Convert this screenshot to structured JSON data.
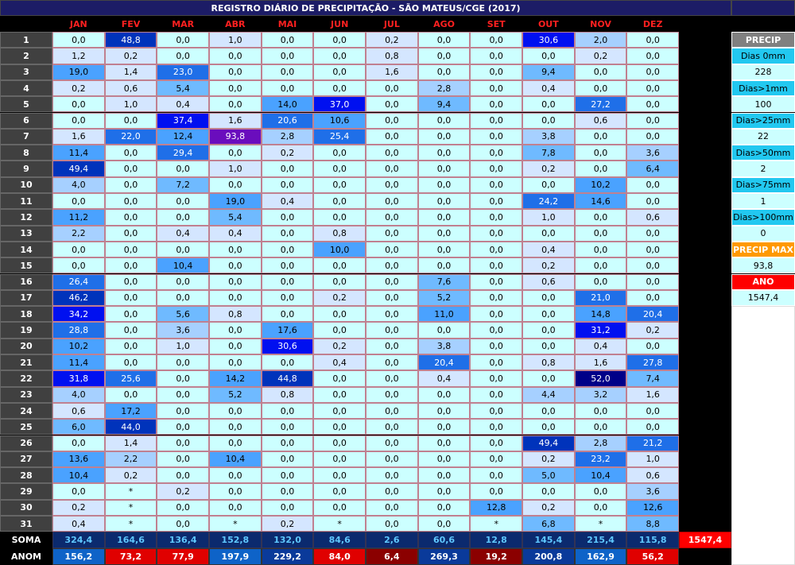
{
  "header": {
    "title": "REGISTRO DIÁRIO DE PRECIPITAÇÃO - SÃO MATEUS/CGE (2017)",
    "months": [
      "JAN",
      "FEV",
      "MAR",
      "ABR",
      "MAI",
      "JUN",
      "JUL",
      "AGO",
      "SET",
      "OUT",
      "NOV",
      "DEZ"
    ]
  },
  "table": {
    "rows": [
      {
        "day": "1",
        "values": [
          "0,0",
          "48,8",
          "0,0",
          "1,0",
          "0,0",
          "0,0",
          "0,2",
          "0,0",
          "0,0",
          "30,6",
          "2,0",
          "0,0"
        ]
      },
      {
        "day": "2",
        "values": [
          "1,2",
          "0,2",
          "0,0",
          "0,0",
          "0,0",
          "0,0",
          "0,8",
          "0,0",
          "0,0",
          "0,0",
          "0,2",
          "0,0"
        ]
      },
      {
        "day": "3",
        "values": [
          "19,0",
          "1,4",
          "23,0",
          "0,0",
          "0,0",
          "0,0",
          "1,6",
          "0,0",
          "0,0",
          "9,4",
          "0,0",
          "0,0"
        ]
      },
      {
        "day": "4",
        "values": [
          "0,2",
          "0,6",
          "5,4",
          "0,0",
          "0,0",
          "0,0",
          "0,0",
          "2,8",
          "0,0",
          "0,4",
          "0,0",
          "0,0"
        ]
      },
      {
        "day": "5",
        "values": [
          "0,0",
          "1,0",
          "0,4",
          "0,0",
          "14,0",
          "37,0",
          "0,0",
          "9,4",
          "0,0",
          "0,0",
          "27,2",
          "0,0"
        ]
      },
      {
        "day": "6",
        "values": [
          "0,0",
          "0,0",
          "37,4",
          "1,6",
          "20,6",
          "10,6",
          "0,0",
          "0,0",
          "0,0",
          "0,0",
          "0,6",
          "0,0"
        ]
      },
      {
        "day": "7",
        "values": [
          "1,6",
          "22,0",
          "12,4",
          "93,8",
          "2,8",
          "25,4",
          "0,0",
          "0,0",
          "0,0",
          "3,8",
          "0,0",
          "0,0"
        ]
      },
      {
        "day": "8",
        "values": [
          "11,4",
          "0,0",
          "29,4",
          "0,0",
          "0,2",
          "0,0",
          "0,0",
          "0,0",
          "0,0",
          "7,8",
          "0,0",
          "3,6"
        ]
      },
      {
        "day": "9",
        "values": [
          "49,4",
          "0,0",
          "0,0",
          "1,0",
          "0,0",
          "0,0",
          "0,0",
          "0,0",
          "0,0",
          "0,2",
          "0,0",
          "6,4"
        ]
      },
      {
        "day": "10",
        "values": [
          "4,0",
          "0,0",
          "7,2",
          "0,0",
          "0,0",
          "0,0",
          "0,0",
          "0,0",
          "0,0",
          "0,0",
          "10,2",
          "0,0"
        ]
      },
      {
        "day": "11",
        "values": [
          "0,0",
          "0,0",
          "0,0",
          "19,0",
          "0,4",
          "0,0",
          "0,0",
          "0,0",
          "0,0",
          "24,2",
          "14,6",
          "0,0"
        ]
      },
      {
        "day": "12",
        "values": [
          "11,2",
          "0,0",
          "0,0",
          "5,4",
          "0,0",
          "0,0",
          "0,0",
          "0,0",
          "0,0",
          "1,0",
          "0,0",
          "0,6"
        ]
      },
      {
        "day": "13",
        "values": [
          "2,2",
          "0,0",
          "0,4",
          "0,4",
          "0,0",
          "0,8",
          "0,0",
          "0,0",
          "0,0",
          "0,0",
          "0,0",
          "0,0"
        ]
      },
      {
        "day": "14",
        "values": [
          "0,0",
          "0,0",
          "0,0",
          "0,0",
          "0,0",
          "10,0",
          "0,0",
          "0,0",
          "0,0",
          "0,4",
          "0,0",
          "0,0"
        ]
      },
      {
        "day": "15",
        "values": [
          "0,0",
          "0,0",
          "10,4",
          "0,0",
          "0,0",
          "0,0",
          "0,0",
          "0,0",
          "0,0",
          "0,2",
          "0,0",
          "0,0"
        ]
      },
      {
        "day": "16",
        "values": [
          "26,4",
          "0,0",
          "0,0",
          "0,0",
          "0,0",
          "0,0",
          "0,0",
          "7,6",
          "0,0",
          "0,6",
          "0,0",
          "0,0"
        ]
      },
      {
        "day": "17",
        "values": [
          "46,2",
          "0,0",
          "0,0",
          "0,0",
          "0,0",
          "0,2",
          "0,0",
          "5,2",
          "0,0",
          "0,0",
          "21,0",
          "0,0"
        ]
      },
      {
        "day": "18",
        "values": [
          "34,2",
          "0,0",
          "5,6",
          "0,8",
          "0,0",
          "0,0",
          "0,0",
          "11,0",
          "0,0",
          "0,0",
          "14,8",
          "20,4"
        ]
      },
      {
        "day": "19",
        "values": [
          "28,8",
          "0,0",
          "3,6",
          "0,0",
          "17,6",
          "0,0",
          "0,0",
          "0,0",
          "0,0",
          "0,0",
          "31,2",
          "0,2"
        ]
      },
      {
        "day": "20",
        "values": [
          "10,2",
          "0,0",
          "1,0",
          "0,0",
          "30,6",
          "0,2",
          "0,0",
          "3,8",
          "0,0",
          "0,0",
          "0,4",
          "0,0"
        ]
      },
      {
        "day": "21",
        "values": [
          "11,4",
          "0,0",
          "0,0",
          "0,0",
          "0,0",
          "0,4",
          "0,0",
          "20,4",
          "0,0",
          "0,8",
          "1,6",
          "27,8"
        ]
      },
      {
        "day": "22",
        "values": [
          "31,8",
          "25,6",
          "0,0",
          "14,2",
          "44,8",
          "0,0",
          "0,0",
          "0,4",
          "0,0",
          "0,0",
          "52,0",
          "7,4"
        ]
      },
      {
        "day": "23",
        "values": [
          "4,0",
          "0,0",
          "0,0",
          "5,2",
          "0,8",
          "0,0",
          "0,0",
          "0,0",
          "0,0",
          "4,4",
          "3,2",
          "1,6"
        ]
      },
      {
        "day": "24",
        "values": [
          "0,6",
          "17,2",
          "0,0",
          "0,0",
          "0,0",
          "0,0",
          "0,0",
          "0,0",
          "0,0",
          "0,0",
          "0,0",
          "0,0"
        ]
      },
      {
        "day": "25",
        "values": [
          "6,0",
          "44,0",
          "0,0",
          "0,0",
          "0,0",
          "0,0",
          "0,0",
          "0,0",
          "0,0",
          "0,0",
          "0,0",
          "0,0"
        ]
      },
      {
        "day": "26",
        "values": [
          "0,0",
          "1,4",
          "0,0",
          "0,0",
          "0,0",
          "0,0",
          "0,0",
          "0,0",
          "0,0",
          "49,4",
          "2,8",
          "21,2"
        ]
      },
      {
        "day": "27",
        "values": [
          "13,6",
          "2,2",
          "0,0",
          "10,4",
          "0,0",
          "0,0",
          "0,0",
          "0,0",
          "0,0",
          "0,2",
          "23,2",
          "1,0"
        ]
      },
      {
        "day": "28",
        "values": [
          "10,4",
          "0,2",
          "0,0",
          "0,0",
          "0,0",
          "0,0",
          "0,0",
          "0,0",
          "0,0",
          "5,0",
          "10,4",
          "0,6"
        ]
      },
      {
        "day": "29",
        "values": [
          "0,0",
          "*",
          "0,2",
          "0,0",
          "0,0",
          "0,0",
          "0,0",
          "0,0",
          "0,0",
          "0,0",
          "0,0",
          "3,6"
        ]
      },
      {
        "day": "30",
        "values": [
          "0,2",
          "*",
          "0,0",
          "0,0",
          "0,0",
          "0,0",
          "0,0",
          "0,0",
          "12,8",
          "0,2",
          "0,0",
          "12,6"
        ]
      },
      {
        "day": "31",
        "values": [
          "0,4",
          "*",
          "0,0",
          "*",
          "0,2",
          "*",
          "0,0",
          "0,0",
          "*",
          "6,8",
          "*",
          "8,8"
        ]
      }
    ]
  },
  "summary": {
    "soma_label": "SOMA",
    "soma": [
      "324,4",
      "164,6",
      "136,4",
      "152,8",
      "132,0",
      "84,6",
      "2,6",
      "60,6",
      "12,8",
      "145,4",
      "215,4",
      "115,8"
    ],
    "soma_total": "1547,4",
    "anom_label": "ANOM",
    "anom": [
      "156,2",
      "73,2",
      "77,9",
      "197,9",
      "229,2",
      "84,0",
      "6,4",
      "269,3",
      "19,2",
      "200,8",
      "162,9",
      "56,2"
    ]
  },
  "side_panel": [
    "PRECIP",
    "Dias 0mm",
    "228",
    "Dias>1mm",
    "100",
    "Dias>25mm",
    "22",
    "Dias>50mm",
    "2",
    "Dias>75mm",
    "1",
    "Dias>100mm",
    "0",
    "PRECIP MAX",
    "93,8",
    "ANO",
    "1547,4"
  ]
}
